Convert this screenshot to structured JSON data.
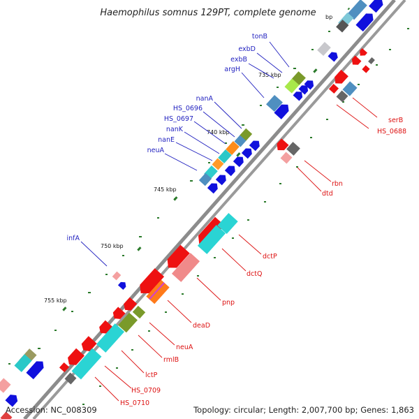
{
  "title": "Haemophilus somnus 129PT, complete genome",
  "accession_label": "Accession: NC_008309",
  "summary_label": "Topology: circular; Length: 2,007,700 bp; Genes: 1,863",
  "colors": {
    "backbone": "#8a8a8a",
    "forward_label": "#1f1fbf",
    "reverse_label": "#dd1111",
    "tick": "#2a7a2a"
  },
  "ticks": [
    {
      "label": "735 kbp"
    },
    {
      "label": "740 kbp"
    },
    {
      "label": "745 kbp"
    },
    {
      "label": "750 kbp"
    },
    {
      "label": "755 kbp"
    },
    {
      "label": "bp"
    }
  ],
  "forward_labels": [
    {
      "name": "tonB"
    },
    {
      "name": "exbD"
    },
    {
      "name": "exbB"
    },
    {
      "name": "argH"
    },
    {
      "name": "nanA"
    },
    {
      "name": "HS_0696"
    },
    {
      "name": "HS_0697"
    },
    {
      "name": "nanK"
    },
    {
      "name": "nanE"
    },
    {
      "name": "neuA"
    },
    {
      "name": "infA"
    }
  ],
  "reverse_labels": [
    {
      "name": "serB"
    },
    {
      "name": "HS_0688"
    },
    {
      "name": "rbn"
    },
    {
      "name": "dtd"
    },
    {
      "name": "dctP"
    },
    {
      "name": "dctQ"
    },
    {
      "name": "pnp"
    },
    {
      "name": "deaD"
    },
    {
      "name": "neuA"
    },
    {
      "name": "rmlB"
    },
    {
      "name": "lctP"
    },
    {
      "name": "HS_0709"
    },
    {
      "name": "HS_0710"
    }
  ]
}
